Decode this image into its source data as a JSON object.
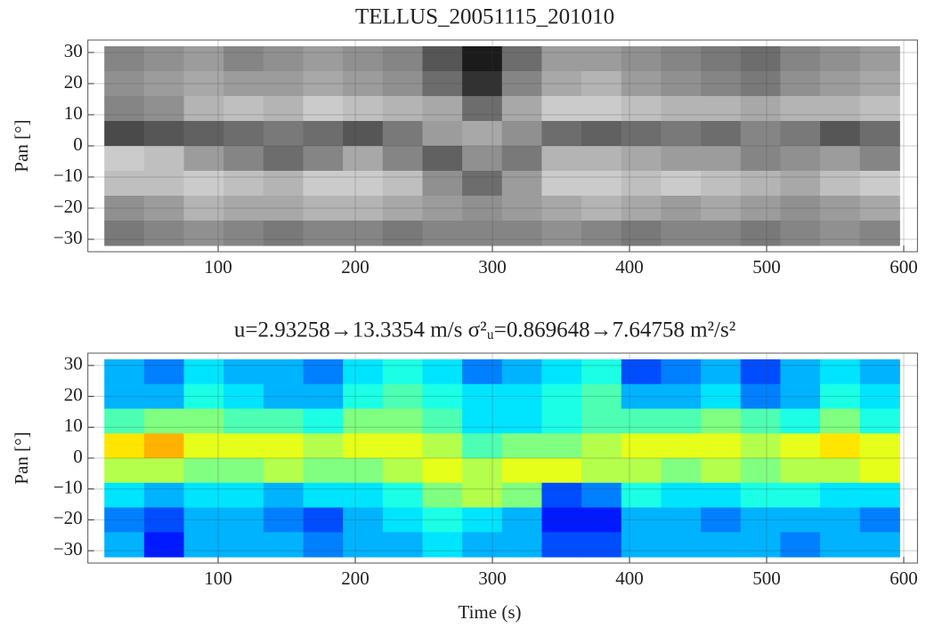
{
  "chart_data": [
    {
      "type": "heatmap",
      "title": "TELLUS_20051115_201010",
      "ylabel": "Pan [°]",
      "colormap": "gray_r",
      "zlim": [
        0,
        1
      ],
      "grid": true,
      "xlim": [
        5,
        610
      ],
      "ylim": [
        -34,
        34
      ],
      "xticks": [
        100,
        200,
        300,
        400,
        500,
        600
      ],
      "yticks": [
        30,
        20,
        10,
        0,
        {
          "value": -10,
          "label": "−10"
        },
        {
          "value": -20,
          "label": "−20"
        },
        {
          "value": -30,
          "label": "−30"
        }
      ],
      "x": [
        31.5,
        60.5,
        89.5,
        118.5,
        147.5,
        176.5,
        205.5,
        234.5,
        263.5,
        292.5,
        321.5,
        350.5,
        379.5,
        408.5,
        437.5,
        466.5,
        495.5,
        524.5,
        553.5,
        582.5
      ],
      "y": [
        28,
        20,
        12,
        4,
        -4,
        -12,
        -20,
        -28
      ],
      "z": [
        [
          0.5,
          0.45,
          0.4,
          0.5,
          0.45,
          0.4,
          0.45,
          0.5,
          0.7,
          0.95,
          0.6,
          0.4,
          0.4,
          0.45,
          0.5,
          0.55,
          0.6,
          0.5,
          0.45,
          0.4
        ],
        [
          0.45,
          0.4,
          0.35,
          0.4,
          0.4,
          0.35,
          0.4,
          0.45,
          0.6,
          0.85,
          0.5,
          0.35,
          0.3,
          0.4,
          0.45,
          0.5,
          0.55,
          0.45,
          0.4,
          0.35
        ],
        [
          0.5,
          0.45,
          0.3,
          0.25,
          0.3,
          0.2,
          0.25,
          0.3,
          0.35,
          0.6,
          0.35,
          0.2,
          0.2,
          0.25,
          0.3,
          0.3,
          0.35,
          0.3,
          0.3,
          0.25
        ],
        [
          0.75,
          0.7,
          0.65,
          0.6,
          0.55,
          0.6,
          0.7,
          0.55,
          0.4,
          0.35,
          0.45,
          0.6,
          0.65,
          0.6,
          0.55,
          0.6,
          0.5,
          0.55,
          0.7,
          0.6
        ],
        [
          0.2,
          0.25,
          0.4,
          0.5,
          0.6,
          0.5,
          0.35,
          0.5,
          0.65,
          0.45,
          0.55,
          0.3,
          0.3,
          0.35,
          0.4,
          0.4,
          0.5,
          0.45,
          0.4,
          0.5
        ],
        [
          0.25,
          0.25,
          0.2,
          0.25,
          0.3,
          0.2,
          0.2,
          0.25,
          0.45,
          0.6,
          0.4,
          0.2,
          0.2,
          0.25,
          0.2,
          0.25,
          0.3,
          0.35,
          0.25,
          0.2
        ],
        [
          0.45,
          0.4,
          0.3,
          0.35,
          0.35,
          0.3,
          0.3,
          0.35,
          0.4,
          0.45,
          0.4,
          0.35,
          0.3,
          0.35,
          0.4,
          0.35,
          0.4,
          0.45,
          0.4,
          0.35
        ],
        [
          0.55,
          0.5,
          0.45,
          0.5,
          0.55,
          0.5,
          0.5,
          0.55,
          0.5,
          0.5,
          0.5,
          0.45,
          0.5,
          0.55,
          0.5,
          0.5,
          0.55,
          0.5,
          0.45,
          0.5
        ]
      ]
    },
    {
      "type": "heatmap",
      "title": "u=2.93258→13.3354 m/s   σ²ᵤ=0.869648→7.64758 m²/s²",
      "xlabel": "Time (s)",
      "ylabel": "Pan [°]",
      "colormap": "jet",
      "zlim": [
        0,
        1
      ],
      "grid": true,
      "xlim": [
        5,
        610
      ],
      "ylim": [
        -34,
        34
      ],
      "xticks": [
        100,
        200,
        300,
        400,
        500,
        600
      ],
      "yticks": [
        30,
        20,
        10,
        0,
        {
          "value": -10,
          "label": "−10"
        },
        {
          "value": -20,
          "label": "−20"
        },
        {
          "value": -30,
          "label": "−30"
        }
      ],
      "x": [
        31.5,
        60.5,
        89.5,
        118.5,
        147.5,
        176.5,
        205.5,
        234.5,
        263.5,
        292.5,
        321.5,
        350.5,
        379.5,
        408.5,
        437.5,
        466.5,
        495.5,
        524.5,
        553.5,
        582.5
      ],
      "y": [
        28,
        20,
        12,
        4,
        -4,
        -12,
        -20,
        -28
      ],
      "z": [
        [
          0.3,
          0.25,
          0.35,
          0.3,
          0.3,
          0.25,
          0.35,
          0.4,
          0.35,
          0.25,
          0.3,
          0.35,
          0.4,
          0.2,
          0.25,
          0.3,
          0.2,
          0.3,
          0.35,
          0.3
        ],
        [
          0.3,
          0.3,
          0.4,
          0.35,
          0.3,
          0.3,
          0.4,
          0.45,
          0.4,
          0.35,
          0.35,
          0.4,
          0.45,
          0.3,
          0.3,
          0.35,
          0.25,
          0.3,
          0.4,
          0.35
        ],
        [
          0.45,
          0.5,
          0.5,
          0.45,
          0.45,
          0.4,
          0.5,
          0.5,
          0.45,
          0.35,
          0.35,
          0.4,
          0.45,
          0.45,
          0.45,
          0.5,
          0.45,
          0.4,
          0.5,
          0.4
        ],
        [
          0.65,
          0.7,
          0.6,
          0.6,
          0.6,
          0.55,
          0.6,
          0.6,
          0.55,
          0.45,
          0.5,
          0.5,
          0.55,
          0.6,
          0.6,
          0.6,
          0.55,
          0.6,
          0.65,
          0.6
        ],
        [
          0.55,
          0.55,
          0.5,
          0.5,
          0.55,
          0.5,
          0.5,
          0.55,
          0.6,
          0.55,
          0.6,
          0.6,
          0.55,
          0.55,
          0.5,
          0.55,
          0.5,
          0.55,
          0.55,
          0.6
        ],
        [
          0.35,
          0.3,
          0.35,
          0.35,
          0.3,
          0.35,
          0.35,
          0.4,
          0.5,
          0.55,
          0.5,
          0.2,
          0.25,
          0.4,
          0.35,
          0.35,
          0.4,
          0.4,
          0.35,
          0.35
        ],
        [
          0.25,
          0.2,
          0.3,
          0.3,
          0.25,
          0.2,
          0.3,
          0.35,
          0.4,
          0.35,
          0.3,
          0.15,
          0.15,
          0.3,
          0.3,
          0.25,
          0.3,
          0.3,
          0.3,
          0.25
        ],
        [
          0.3,
          0.15,
          0.3,
          0.3,
          0.3,
          0.25,
          0.3,
          0.3,
          0.35,
          0.3,
          0.3,
          0.2,
          0.2,
          0.3,
          0.3,
          0.3,
          0.3,
          0.25,
          0.3,
          0.3
        ]
      ]
    }
  ]
}
